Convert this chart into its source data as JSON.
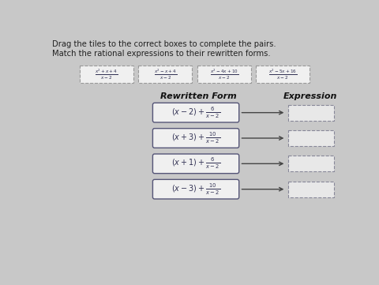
{
  "title1": "Drag the tiles to the correct boxes to complete the pairs.",
  "title2": "Match the rational expressions to their rewritten forms.",
  "tiles": [
    "\\frac{x^2+x+4}{x-2}",
    "\\frac{x^2-x+4}{x-2}",
    "\\frac{x^2-4x+10}{x-2}",
    "\\frac{x^2-5x+16}{x-2}"
  ],
  "col_header_left": "Rewritten Form",
  "col_header_right": "Expression",
  "rows": [
    "(x-2)+\\frac{6}{x-2}",
    "(x+3)+\\frac{10}{x-2}",
    "(x+1)+\\frac{6}{x-2}",
    "(x-3)+\\frac{10}{x-2}"
  ],
  "bg_color": "#c8c8c8",
  "tile_bg": "#f0f0f0",
  "tile_border": "#999999",
  "row_box_bg": "#f0f0f0",
  "row_box_border": "#555577",
  "answer_box_bg": "#e8e8e8",
  "answer_box_border": "#888899",
  "arrow_color": "#444444",
  "text_color": "#222222",
  "header_color": "#111111",
  "tile_text_color": "#333355",
  "row_text_color": "#333355"
}
